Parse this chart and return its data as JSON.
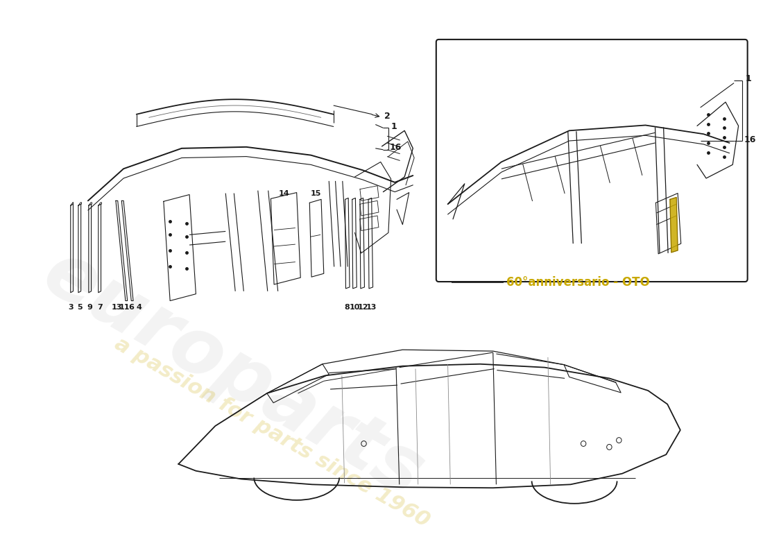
{
  "bg": "#ffffff",
  "lc": "#1a1a1a",
  "yellow": "#c8a800",
  "box_label": "60°anniversario - OTO",
  "watermark1": "europarts",
  "watermark2": "a passion for parts since 1960"
}
